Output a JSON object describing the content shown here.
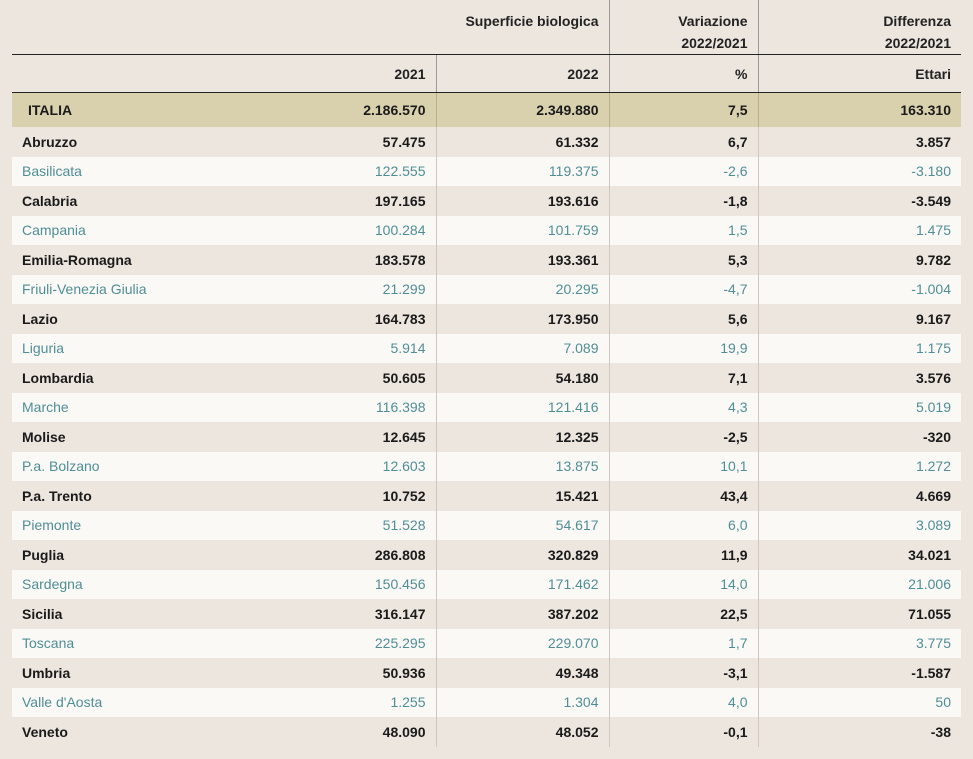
{
  "header": {
    "group_label": "Superficie biologica",
    "var_label_1": "Variazione",
    "var_label_2": "2022/2021",
    "diff_label_1": "Differenza",
    "diff_label_2": "2022/2021",
    "col_2021": "2021",
    "col_2022": "2022",
    "col_pct": "%",
    "col_ettari": "Ettari"
  },
  "italia": {
    "name": "ITALIA",
    "y2021": "2.186.570",
    "y2022": "2.349.880",
    "pct": "7,5",
    "diff": "163.310"
  },
  "rows": [
    {
      "name": "Abruzzo",
      "y2021": "57.475",
      "y2022": "61.332",
      "pct": "6,7",
      "diff": "3.857"
    },
    {
      "name": "Basilicata",
      "y2021": "122.555",
      "y2022": "119.375",
      "pct": "-2,6",
      "diff": "-3.180"
    },
    {
      "name": "Calabria",
      "y2021": "197.165",
      "y2022": "193.616",
      "pct": "-1,8",
      "diff": "-3.549"
    },
    {
      "name": "Campania",
      "y2021": "100.284",
      "y2022": "101.759",
      "pct": "1,5",
      "diff": "1.475"
    },
    {
      "name": "Emilia-Romagna",
      "y2021": "183.578",
      "y2022": "193.361",
      "pct": "5,3",
      "diff": "9.782"
    },
    {
      "name": "Friuli-Venezia Giulia",
      "y2021": "21.299",
      "y2022": "20.295",
      "pct": "-4,7",
      "diff": "-1.004"
    },
    {
      "name": "Lazio",
      "y2021": "164.783",
      "y2022": "173.950",
      "pct": "5,6",
      "diff": "9.167"
    },
    {
      "name": "Liguria",
      "y2021": "5.914",
      "y2022": "7.089",
      "pct": "19,9",
      "diff": "1.175"
    },
    {
      "name": "Lombardia",
      "y2021": "50.605",
      "y2022": "54.180",
      "pct": "7,1",
      "diff": "3.576"
    },
    {
      "name": "Marche",
      "y2021": "116.398",
      "y2022": "121.416",
      "pct": "4,3",
      "diff": "5.019"
    },
    {
      "name": "Molise",
      "y2021": "12.645",
      "y2022": "12.325",
      "pct": "-2,5",
      "diff": "-320"
    },
    {
      "name": "P.a. Bolzano",
      "y2021": "12.603",
      "y2022": "13.875",
      "pct": "10,1",
      "diff": "1.272"
    },
    {
      "name": "P.a. Trento",
      "y2021": "10.752",
      "y2022": "15.421",
      "pct": "43,4",
      "diff": "4.669"
    },
    {
      "name": "Piemonte",
      "y2021": "51.528",
      "y2022": "54.617",
      "pct": "6,0",
      "diff": "3.089"
    },
    {
      "name": "Puglia",
      "y2021": "286.808",
      "y2022": "320.829",
      "pct": "11,9",
      "diff": "34.021"
    },
    {
      "name": "Sardegna",
      "y2021": "150.456",
      "y2022": "171.462",
      "pct": "14,0",
      "diff": "21.006"
    },
    {
      "name": "Sicilia",
      "y2021": "316.147",
      "y2022": "387.202",
      "pct": "22,5",
      "diff": "71.055"
    },
    {
      "name": "Toscana",
      "y2021": "225.295",
      "y2022": "229.070",
      "pct": "1,7",
      "diff": "3.775"
    },
    {
      "name": "Umbria",
      "y2021": "50.936",
      "y2022": "49.348",
      "pct": "-3,1",
      "diff": "-1.587"
    },
    {
      "name": "Valle d'Aosta",
      "y2021": "1.255",
      "y2022": "1.304",
      "pct": "4,0",
      "diff": "50"
    },
    {
      "name": "Veneto",
      "y2021": "48.090",
      "y2022": "48.052",
      "pct": "-0,1",
      "diff": "-38"
    }
  ],
  "colors": {
    "background": "#ede6df",
    "italia_row": "#d9d0ae",
    "alt_row": "#fbf9f6",
    "alt_text": "#4f8e96"
  }
}
